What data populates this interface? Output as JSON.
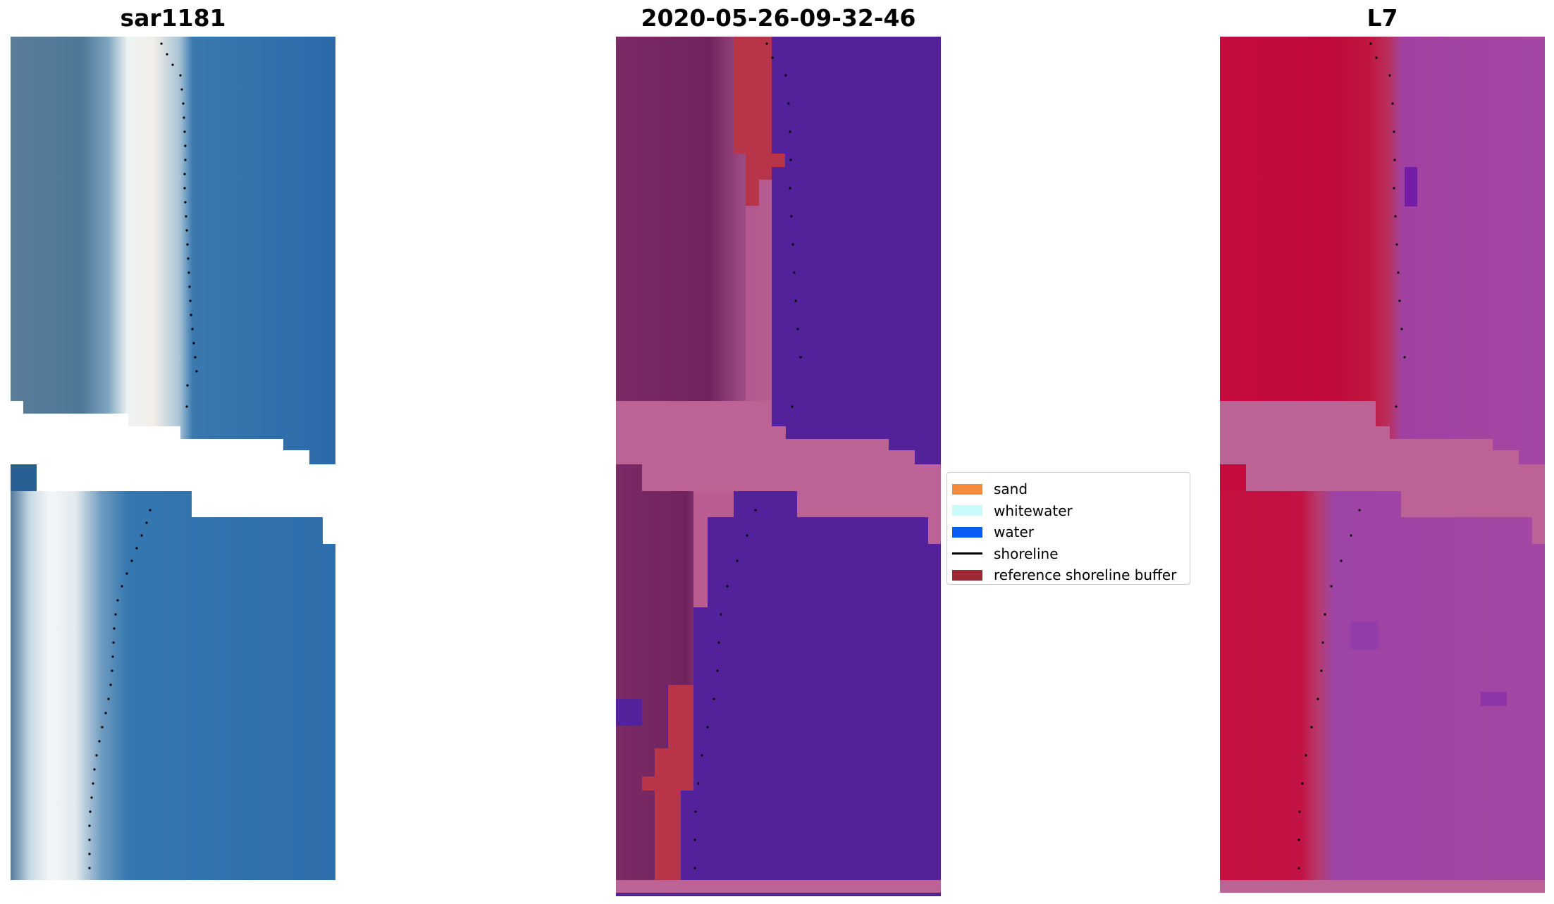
{
  "panels": [
    {
      "title": "sar1181",
      "view": "rgb"
    },
    {
      "title": "2020-05-26-09-32-46",
      "view": "classification"
    },
    {
      "title": "L7",
      "view": "ndwi"
    }
  ],
  "legend": {
    "items": [
      {
        "label": "sand",
        "color": "#f58a3b",
        "kind": "patch"
      },
      {
        "label": "whitewater",
        "color": "#c9fbfb",
        "kind": "patch"
      },
      {
        "label": "water",
        "color": "#0a5cf5",
        "kind": "patch"
      },
      {
        "label": "shoreline",
        "color": "#000000",
        "kind": "line"
      },
      {
        "label": "reference shoreline buffer",
        "color": "#9b2a35",
        "kind": "patch"
      }
    ]
  },
  "colors": {
    "water_rgb": "#2c6fae",
    "land_rgb": "#4f7898",
    "beach_rgb": "#e7eef0",
    "class_water": "#53229a",
    "class_land": "#7a2864",
    "class_buffer_pink": "#bd6294",
    "class_buffer_red": "#b83448",
    "ndwi_land": "#c10b3c",
    "ndwi_water": "#a344a4"
  }
}
